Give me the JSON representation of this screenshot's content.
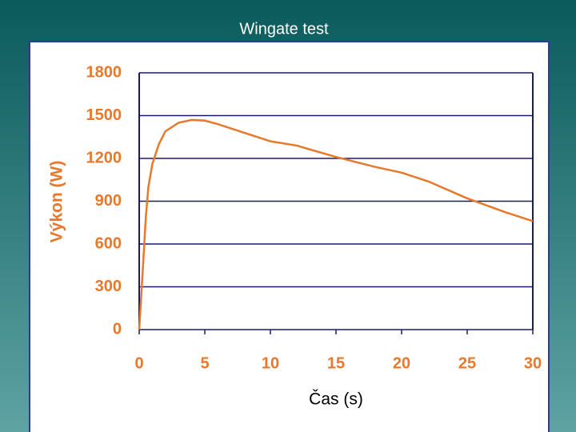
{
  "chart_data": {
    "type": "line",
    "title": "Wingate test",
    "x_label": "Čas (s)",
    "y_label": "Výkon (W)",
    "x": [
      0,
      0.3,
      0.5,
      0.7,
      1,
      1.5,
      2,
      3,
      4,
      5,
      6,
      8,
      10,
      12,
      15,
      18,
      20,
      22,
      25,
      28,
      30
    ],
    "values": [
      0,
      460,
      780,
      1000,
      1160,
      1300,
      1390,
      1450,
      1470,
      1465,
      1440,
      1380,
      1320,
      1290,
      1210,
      1140,
      1100,
      1040,
      920,
      820,
      760
    ],
    "color": "#e8782a",
    "xlim": [
      0,
      30
    ],
    "xticks": [
      0,
      5,
      10,
      15,
      20,
      25,
      30
    ],
    "ylim": [
      0,
      1800
    ],
    "yticks": [
      0,
      300,
      600,
      900,
      1200,
      1500,
      1800
    ],
    "grid": true
  }
}
